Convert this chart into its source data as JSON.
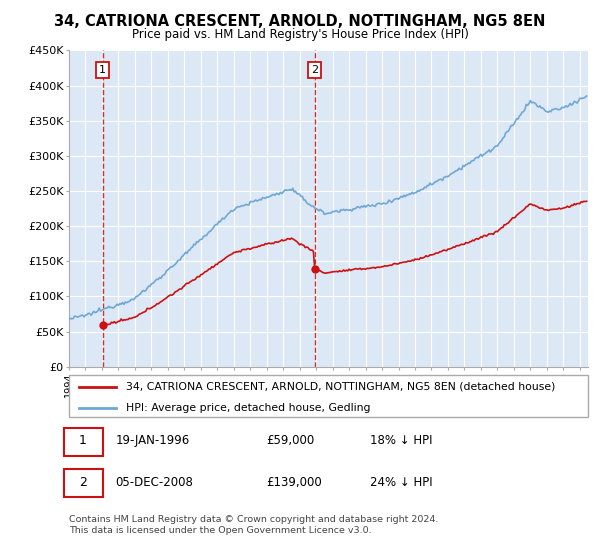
{
  "title": "34, CATRIONA CRESCENT, ARNOLD, NOTTINGHAM, NG5 8EN",
  "subtitle": "Price paid vs. HM Land Registry's House Price Index (HPI)",
  "ylim": [
    0,
    450000
  ],
  "yticks": [
    0,
    50000,
    100000,
    150000,
    200000,
    250000,
    300000,
    350000,
    400000,
    450000
  ],
  "ytick_labels": [
    "£0",
    "£50K",
    "£100K",
    "£150K",
    "£200K",
    "£250K",
    "£300K",
    "£350K",
    "£400K",
    "£450K"
  ],
  "sale1_year": 1996.05,
  "sale1_price": 59000,
  "sale1_label": "1",
  "sale2_year": 2008.92,
  "sale2_price": 139000,
  "sale2_label": "2",
  "hpi_color": "#6fa8d4",
  "price_color": "#cc1111",
  "box_color": "#cc1111",
  "chart_bg": "#dce8f5",
  "grid_color": "#b0c4d8",
  "legend_line1": "34, CATRIONA CRESCENT, ARNOLD, NOTTINGHAM, NG5 8EN (detached house)",
  "legend_line2": "HPI: Average price, detached house, Gedling",
  "footnote1": "Contains HM Land Registry data © Crown copyright and database right 2024.",
  "footnote2": "This data is licensed under the Open Government Licence v3.0.",
  "table_row1": [
    "1",
    "19-JAN-1996",
    "£59,000",
    "18% ↓ HPI"
  ],
  "table_row2": [
    "2",
    "05-DEC-2008",
    "£139,000",
    "24% ↓ HPI"
  ],
  "xmin": 1994,
  "xmax": 2025.5
}
